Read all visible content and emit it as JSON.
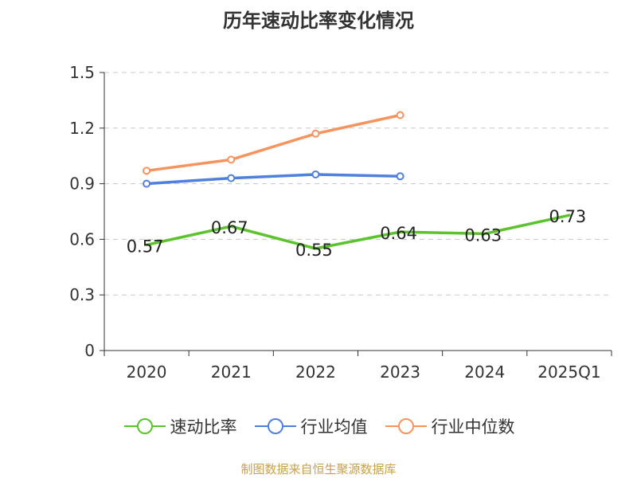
{
  "title": "历年速动比率变化情况",
  "source": "制图数据来自恒生聚源数据库",
  "chart_data": {
    "type": "line",
    "title": "历年速动比率变化情况",
    "categories": [
      "2020",
      "2021",
      "2022",
      "2023",
      "2024",
      "2025Q1"
    ],
    "ylim": [
      0,
      1.5
    ],
    "yticks": [
      "0",
      "0.3",
      "0.6",
      "0.9",
      "1.2",
      "1.5"
    ],
    "ytick_values": [
      0,
      0.3,
      0.6,
      0.9,
      1.2,
      1.5
    ],
    "grid": true,
    "legend_position": "bottom",
    "series": [
      {
        "name": "速动比率",
        "color": "#5cc22d",
        "values": [
          0.57,
          0.67,
          0.55,
          0.64,
          0.63,
          0.73
        ],
        "labels": [
          "0.57",
          "0.67",
          "0.55",
          "0.64",
          "0.63",
          "0.73"
        ],
        "show_labels": true,
        "show_markers": false
      },
      {
        "name": "行业均值",
        "color": "#4f80dc",
        "values": [
          0.9,
          0.93,
          0.95,
          0.94,
          null,
          null
        ],
        "show_labels": false,
        "show_markers": true
      },
      {
        "name": "行业中位数",
        "color": "#f69460",
        "values": [
          0.97,
          1.03,
          1.17,
          1.27,
          null,
          null
        ],
        "show_labels": false,
        "show_markers": true
      }
    ]
  }
}
